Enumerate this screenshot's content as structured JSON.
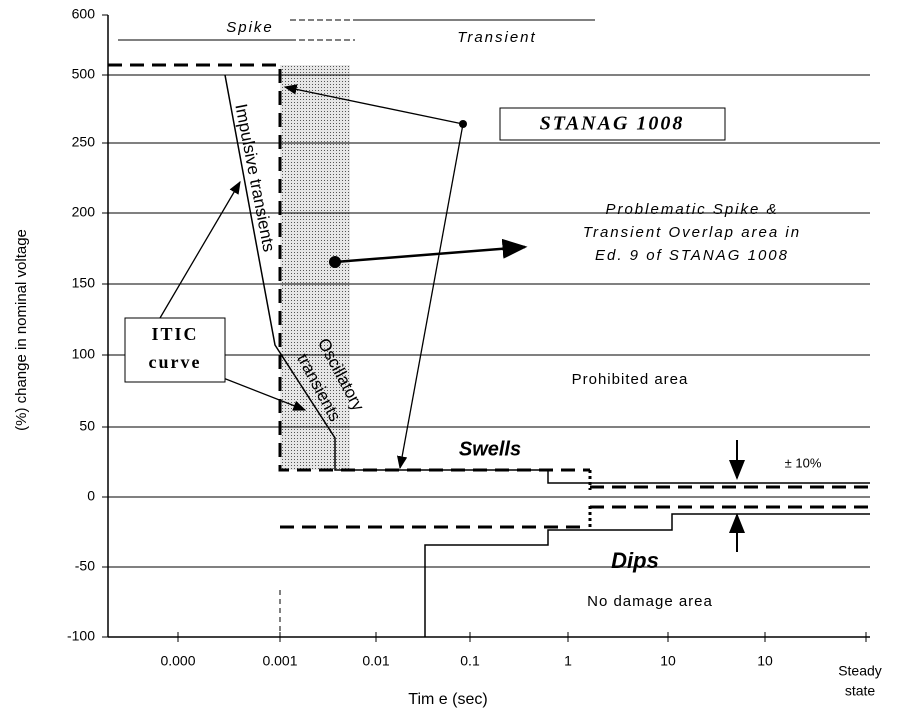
{
  "y_axis": {
    "label": "(%) change in nominal voltage",
    "tick_labels": [
      "600",
      "500",
      "250",
      "200",
      "150",
      "100",
      "50",
      "0",
      "-50",
      "-100"
    ]
  },
  "x_axis": {
    "label": "Tim e (sec)",
    "tick_labels": [
      "0.000",
      "0.001",
      "0.01",
      "0.1",
      "1",
      "10",
      "10"
    ],
    "last_label": [
      "Steady",
      "state"
    ]
  },
  "annotations": {
    "spike": "Spike",
    "transient": "Transient",
    "stanag": "STANAG 1008",
    "problematic": [
      "Problematic Spike &",
      "Transient Overlap area in",
      "Ed. 9 of STANAG 1008"
    ],
    "itic": [
      "ITIC",
      "curve"
    ],
    "impulsive": "Impulsive transients",
    "oscillatory": [
      "Oscillatory",
      "transients"
    ],
    "prohibited": "Prohibited area",
    "swells": "Swells",
    "tolerance": "± 10%",
    "dips": "Dips",
    "no_damage": "No damage area"
  }
}
